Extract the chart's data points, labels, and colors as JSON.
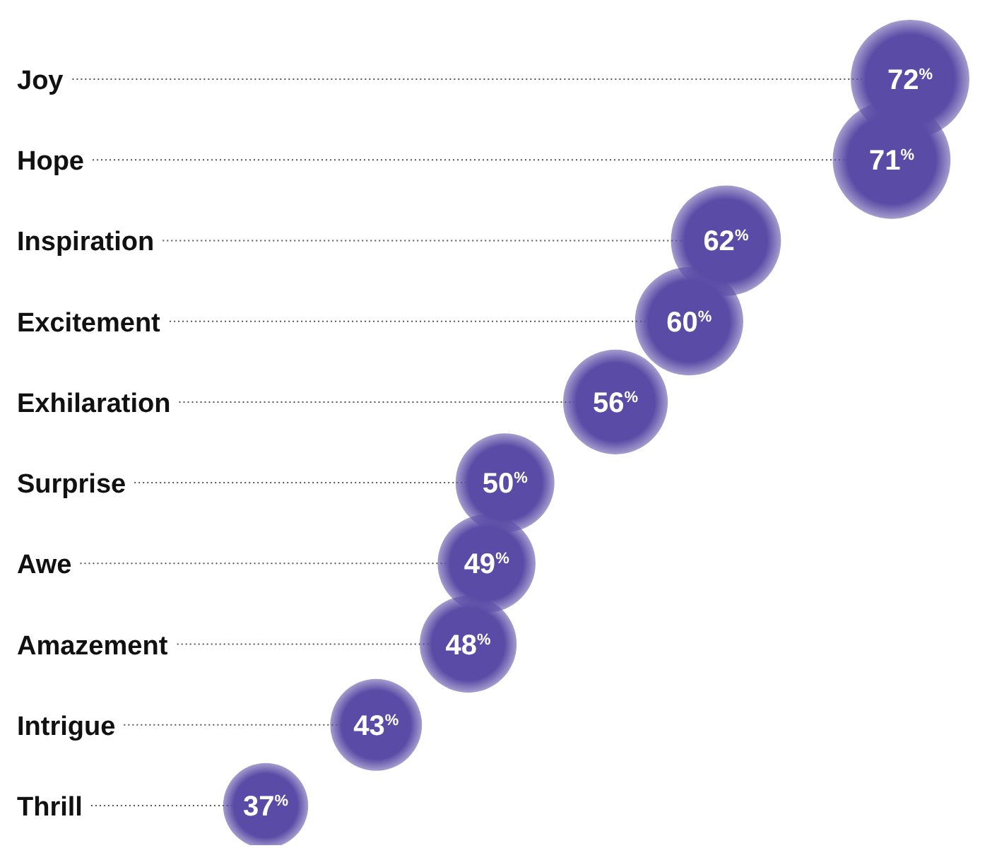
{
  "chart_data": {
    "type": "lollipop",
    "orientation": "horizontal",
    "categories": [
      "Joy",
      "Hope",
      "Inspiration",
      "Excitement",
      "Exhilaration",
      "Surprise",
      "Awe",
      "Amazement",
      "Intrigue",
      "Thrill"
    ],
    "values": [
      72,
      71,
      62,
      60,
      56,
      50,
      49,
      48,
      43,
      37
    ],
    "value_labels": [
      "72$^{%}$",
      "71$^{%}$",
      "62$^{%}$",
      "60$^{%}$",
      "56$^{%}$",
      "50$^{%}$",
      "49$^{%}$",
      "48$^{%}$",
      "43$^{%}$",
      "37$^{%}$"
    ],
    "sizes": [
      1,
      0.986,
      0.861,
      0.833,
      0.778,
      0.694,
      0.681,
      0.667,
      0.597,
      0.514
    ],
    "grid": "y",
    "color": "#5a4ca6",
    "line_style": "dotted"
  }
}
